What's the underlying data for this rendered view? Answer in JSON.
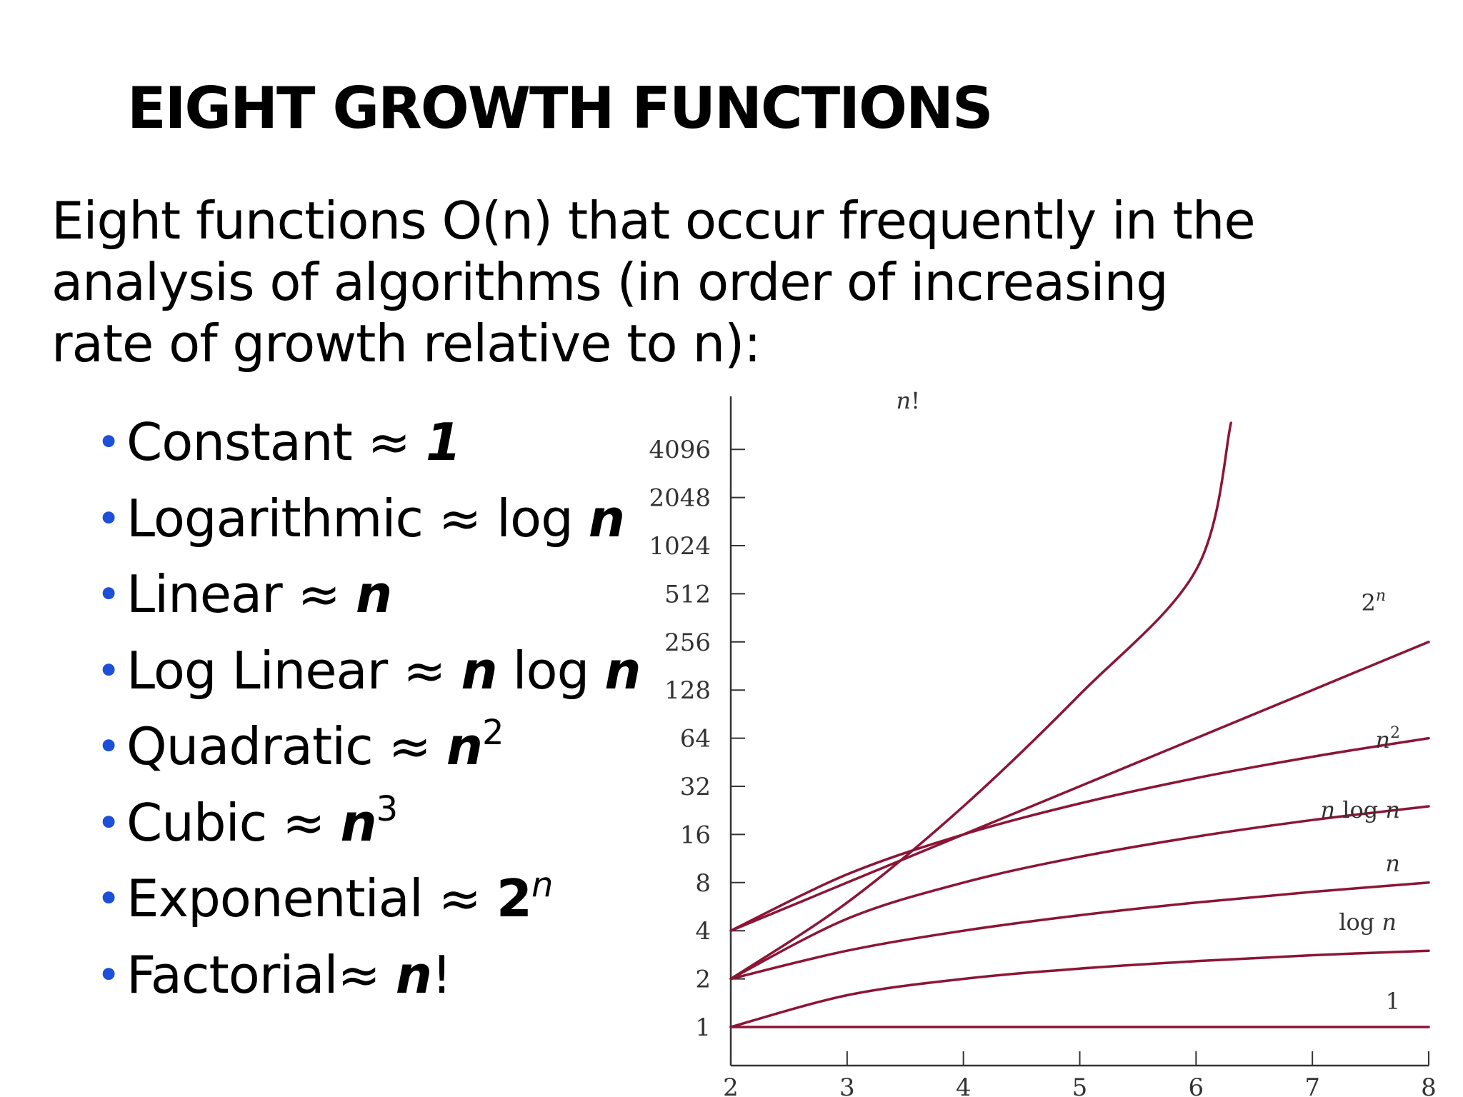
{
  "slide": {
    "title": "EIGHT GROWTH FUNCTIONS",
    "intro_lines": [
      "Eight functions O(n) that occur frequently in the",
      "analysis of algorithms (in order of increasing",
      "rate of growth relative to n):"
    ],
    "bullets": [
      {
        "name": "Constant",
        "approx": "≈",
        "expr": "1"
      },
      {
        "name": "Logarithmic",
        "approx": "≈",
        "expr_prefix": "log",
        "expr": "n"
      },
      {
        "name": "Linear",
        "approx": "≈",
        "expr": "n"
      },
      {
        "name": "Log Linear",
        "approx": "≈",
        "expr": "n",
        "expr_mid": "log",
        "expr2": "n"
      },
      {
        "name": "Quadratic",
        "approx": "≈",
        "expr": "n",
        "sup": "2"
      },
      {
        "name": "Cubic",
        "approx": "≈",
        "expr": "n",
        "sup": "3"
      },
      {
        "name": "Exponential",
        "approx": "≈",
        "expr": "2",
        "sup": "n"
      },
      {
        "name": "Factorial",
        "approx": "≈",
        "expr": "n",
        "suffix": "!"
      }
    ],
    "colors": {
      "bullet": "#1e4fd8",
      "curve": "#8c1535",
      "axis": "#333333",
      "text": "#000000"
    }
  },
  "chart_data": {
    "type": "line",
    "y_scale": "log2",
    "x_ticks": [
      2,
      3,
      4,
      5,
      6,
      7,
      8
    ],
    "y_ticks": [
      1,
      2,
      4,
      8,
      16,
      32,
      64,
      128,
      256,
      512,
      1024,
      2048,
      4096
    ],
    "xlim": [
      2,
      8
    ],
    "ylim": [
      0.5,
      8192
    ],
    "grid": false,
    "series": [
      {
        "name": "1",
        "label_parts": [
          "1"
        ],
        "x": [
          2,
          3,
          4,
          5,
          6,
          7,
          8
        ],
        "y": [
          1,
          1,
          1,
          1,
          1,
          1,
          1
        ]
      },
      {
        "name": "log n",
        "label_parts": [
          "log ",
          "n"
        ],
        "x": [
          2,
          3,
          4,
          5,
          6,
          7,
          8
        ],
        "y": [
          1,
          1.58,
          2,
          2.32,
          2.58,
          2.81,
          3
        ]
      },
      {
        "name": "n",
        "label_parts": [
          "n"
        ],
        "x": [
          2,
          3,
          4,
          5,
          6,
          7,
          8
        ],
        "y": [
          2,
          3,
          4,
          5,
          6,
          7,
          8
        ]
      },
      {
        "name": "n log n",
        "label_parts": [
          "n",
          " log ",
          "n"
        ],
        "x": [
          2,
          3,
          4,
          5,
          6,
          7,
          8
        ],
        "y": [
          2,
          4.75,
          8,
          11.6,
          15.5,
          19.7,
          24
        ]
      },
      {
        "name": "n2",
        "label_parts": [
          "n",
          "2"
        ],
        "x": [
          2,
          3,
          4,
          5,
          6,
          7,
          8
        ],
        "y": [
          4,
          9,
          16,
          25,
          36,
          49,
          64
        ]
      },
      {
        "name": "2n",
        "label_parts": [
          "2",
          "n"
        ],
        "x": [
          2,
          3,
          4,
          5,
          6,
          7,
          8
        ],
        "y": [
          4,
          8,
          16,
          32,
          64,
          128,
          256
        ]
      },
      {
        "name": "n!",
        "label_parts": [
          "n",
          "!"
        ],
        "x": [
          2,
          3,
          4,
          5,
          6,
          6.3
        ],
        "y": [
          2,
          6,
          24,
          120,
          720,
          6000
        ]
      }
    ]
  }
}
